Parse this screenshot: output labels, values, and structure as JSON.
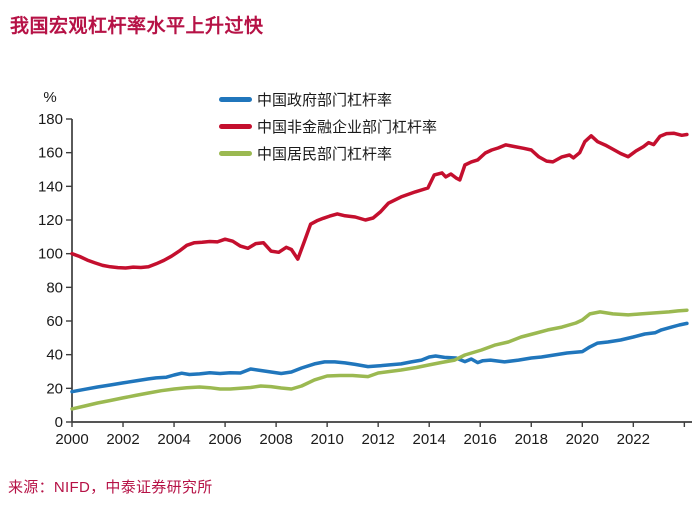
{
  "page": {
    "title": "我国宏观杠杆率水平上升过快",
    "source": "来源：NIFD，中泰证券研究所"
  },
  "colors": {
    "title_text": "#B61246",
    "source_text": "#B61246",
    "axis_line": "#3d3d3d",
    "tick_label": "#1a1a1a"
  },
  "chart_data": {
    "type": "line",
    "title": "我国宏观杠杆率水平上升过快",
    "unit_label": "%",
    "legend_position": "top-center",
    "grid": false,
    "x_axis": {
      "min": 2000,
      "max": 2024.3,
      "label_ticks": [
        2000,
        2002,
        2004,
        2006,
        2008,
        2010,
        2012,
        2014,
        2016,
        2018,
        2020,
        2022
      ],
      "mark_ticks": [
        2000,
        2002,
        2004,
        2006,
        2008,
        2010,
        2012,
        2014,
        2016,
        2018,
        2020,
        2022,
        2024
      ]
    },
    "y_axis": {
      "min": 0,
      "max": 180,
      "ticks": [
        0,
        20,
        40,
        60,
        80,
        100,
        120,
        140,
        160,
        180
      ]
    },
    "series": [
      {
        "key": "government",
        "name": "中国政府部门杠杆率",
        "color": "#2076BC",
        "points": [
          [
            2000,
            18
          ],
          [
            2000.5,
            19.4
          ],
          [
            2001,
            20.8
          ],
          [
            2001.5,
            22
          ],
          [
            2002,
            23.2
          ],
          [
            2002.5,
            24.4
          ],
          [
            2003,
            25.6
          ],
          [
            2003.3,
            26.2
          ],
          [
            2003.7,
            26.6
          ],
          [
            2004,
            27.9
          ],
          [
            2004.3,
            29
          ],
          [
            2004.6,
            28.2
          ],
          [
            2005,
            28.6
          ],
          [
            2005.4,
            29.2
          ],
          [
            2005.8,
            28.8
          ],
          [
            2006.2,
            29.3
          ],
          [
            2006.6,
            29.1
          ],
          [
            2007,
            31.5
          ],
          [
            2007.4,
            30.6
          ],
          [
            2007.8,
            29.7
          ],
          [
            2008.2,
            28.8
          ],
          [
            2008.6,
            29.7
          ],
          [
            2009,
            32.1
          ],
          [
            2009.5,
            34.5
          ],
          [
            2009.9,
            35.7
          ],
          [
            2010.3,
            35.7
          ],
          [
            2010.7,
            35.1
          ],
          [
            2011.1,
            34.2
          ],
          [
            2011.6,
            32.9
          ],
          [
            2012,
            33.3
          ],
          [
            2012.5,
            34
          ],
          [
            2012.9,
            34.5
          ],
          [
            2013.3,
            35.7
          ],
          [
            2013.7,
            36.8
          ],
          [
            2014,
            38.6
          ],
          [
            2014.25,
            39.2
          ],
          [
            2014.6,
            38.4
          ],
          [
            2015.05,
            38
          ],
          [
            2015.4,
            35.9
          ],
          [
            2015.65,
            37.4
          ],
          [
            2015.9,
            35.3
          ],
          [
            2016.1,
            36.4
          ],
          [
            2016.4,
            36.8
          ],
          [
            2016.95,
            35.7
          ],
          [
            2017.5,
            36.8
          ],
          [
            2018,
            38
          ],
          [
            2018.4,
            38.6
          ],
          [
            2018.9,
            39.8
          ],
          [
            2019.4,
            41
          ],
          [
            2020,
            41.8
          ],
          [
            2020.3,
            44.6
          ],
          [
            2020.6,
            46.9
          ],
          [
            2021,
            47.5
          ],
          [
            2021.5,
            48.7
          ],
          [
            2022,
            50.5
          ],
          [
            2022.45,
            52.3
          ],
          [
            2022.85,
            53
          ],
          [
            2023.1,
            54.7
          ],
          [
            2023.5,
            56.4
          ],
          [
            2023.8,
            57.6
          ],
          [
            2024.1,
            58.6
          ]
        ]
      },
      {
        "key": "nonfinancial-corporate",
        "name": "中国非金融企业部门杠杆率",
        "color": "#C40F2E",
        "points": [
          [
            2000,
            100
          ],
          [
            2000.3,
            98.3
          ],
          [
            2000.6,
            96.2
          ],
          [
            2000.9,
            94.5
          ],
          [
            2001.2,
            93
          ],
          [
            2001.5,
            92.2
          ],
          [
            2001.8,
            91.7
          ],
          [
            2002.1,
            91.5
          ],
          [
            2002.4,
            92
          ],
          [
            2002.7,
            91.8
          ],
          [
            2003,
            92.2
          ],
          [
            2003.3,
            94
          ],
          [
            2003.6,
            96
          ],
          [
            2003.9,
            98.5
          ],
          [
            2004.2,
            101.5
          ],
          [
            2004.5,
            105
          ],
          [
            2004.8,
            106.5
          ],
          [
            2005.1,
            106.8
          ],
          [
            2005.4,
            107.2
          ],
          [
            2005.7,
            107
          ],
          [
            2006,
            108.6
          ],
          [
            2006.3,
            107.4
          ],
          [
            2006.6,
            104.5
          ],
          [
            2006.9,
            103.2
          ],
          [
            2007.2,
            106
          ],
          [
            2007.5,
            106.5
          ],
          [
            2007.8,
            101.5
          ],
          [
            2008.1,
            100.8
          ],
          [
            2008.4,
            103.8
          ],
          [
            2008.6,
            102.5
          ],
          [
            2008.85,
            96.8
          ],
          [
            2009.1,
            107
          ],
          [
            2009.35,
            117.5
          ],
          [
            2009.6,
            119.5
          ],
          [
            2009.85,
            121
          ],
          [
            2010.1,
            122.3
          ],
          [
            2010.4,
            123.6
          ],
          [
            2010.7,
            122.5
          ],
          [
            2011.1,
            121.8
          ],
          [
            2011.5,
            120
          ],
          [
            2011.8,
            121.2
          ],
          [
            2012.1,
            125
          ],
          [
            2012.4,
            130
          ],
          [
            2012.9,
            133.7
          ],
          [
            2013.45,
            136.7
          ],
          [
            2013.95,
            139
          ],
          [
            2014.2,
            146.8
          ],
          [
            2014.5,
            148
          ],
          [
            2014.65,
            145.6
          ],
          [
            2014.85,
            147.3
          ],
          [
            2015.05,
            145
          ],
          [
            2015.2,
            143.8
          ],
          [
            2015.4,
            152.7
          ],
          [
            2015.65,
            154.5
          ],
          [
            2015.9,
            155.7
          ],
          [
            2016.2,
            159.8
          ],
          [
            2016.45,
            161.6
          ],
          [
            2016.7,
            162.8
          ],
          [
            2017,
            164.6
          ],
          [
            2017.35,
            163.6
          ],
          [
            2017.7,
            162.6
          ],
          [
            2018,
            161.6
          ],
          [
            2018.3,
            157.5
          ],
          [
            2018.6,
            155
          ],
          [
            2018.85,
            154.5
          ],
          [
            2019.2,
            157.5
          ],
          [
            2019.5,
            158.6
          ],
          [
            2019.65,
            156.9
          ],
          [
            2019.9,
            160
          ],
          [
            2020.1,
            166.5
          ],
          [
            2020.35,
            170
          ],
          [
            2020.6,
            166.5
          ],
          [
            2020.9,
            164.5
          ],
          [
            2021.15,
            162.5
          ],
          [
            2021.5,
            159.5
          ],
          [
            2021.8,
            157.6
          ],
          [
            2022.1,
            161
          ],
          [
            2022.4,
            163.6
          ],
          [
            2022.6,
            166
          ],
          [
            2022.8,
            164.8
          ],
          [
            2023.05,
            169.8
          ],
          [
            2023.3,
            171.3
          ],
          [
            2023.6,
            171.5
          ],
          [
            2023.9,
            170.3
          ],
          [
            2024.1,
            170.8
          ]
        ]
      },
      {
        "key": "household",
        "name": "中国居民部门杠杆率",
        "color": "#9BB951",
        "points": [
          [
            2000,
            7.8
          ],
          [
            2000.5,
            9.5
          ],
          [
            2001,
            11.3
          ],
          [
            2001.5,
            12.8
          ],
          [
            2002,
            14.3
          ],
          [
            2002.5,
            15.8
          ],
          [
            2003,
            17.2
          ],
          [
            2003.5,
            18.6
          ],
          [
            2004,
            19.6
          ],
          [
            2004.5,
            20.4
          ],
          [
            2005,
            20.8
          ],
          [
            2005.4,
            20.4
          ],
          [
            2005.8,
            19.6
          ],
          [
            2006.2,
            19.6
          ],
          [
            2006.6,
            20
          ],
          [
            2007,
            20.5
          ],
          [
            2007.4,
            21.4
          ],
          [
            2007.8,
            21
          ],
          [
            2008.2,
            20.2
          ],
          [
            2008.6,
            19.6
          ],
          [
            2009,
            21.4
          ],
          [
            2009.5,
            25
          ],
          [
            2010,
            27.3
          ],
          [
            2010.5,
            27.6
          ],
          [
            2011,
            27.6
          ],
          [
            2011.6,
            27
          ],
          [
            2012,
            29.1
          ],
          [
            2012.9,
            30.9
          ],
          [
            2013.5,
            32.4
          ],
          [
            2014,
            33.9
          ],
          [
            2014.5,
            35.4
          ],
          [
            2015,
            36.8
          ],
          [
            2015.4,
            39.8
          ],
          [
            2016.05,
            42.8
          ],
          [
            2016.6,
            45.8
          ],
          [
            2017.1,
            47.5
          ],
          [
            2017.6,
            50.5
          ],
          [
            2018.2,
            52.9
          ],
          [
            2018.65,
            54.7
          ],
          [
            2019.2,
            56.4
          ],
          [
            2019.75,
            58.8
          ],
          [
            2020,
            60.6
          ],
          [
            2020.3,
            64.2
          ],
          [
            2020.7,
            65.4
          ],
          [
            2021.2,
            64.2
          ],
          [
            2021.8,
            63.6
          ],
          [
            2022.3,
            64.2
          ],
          [
            2022.85,
            64.8
          ],
          [
            2023.4,
            65.4
          ],
          [
            2023.75,
            66
          ],
          [
            2024.1,
            66.4
          ]
        ]
      }
    ]
  }
}
